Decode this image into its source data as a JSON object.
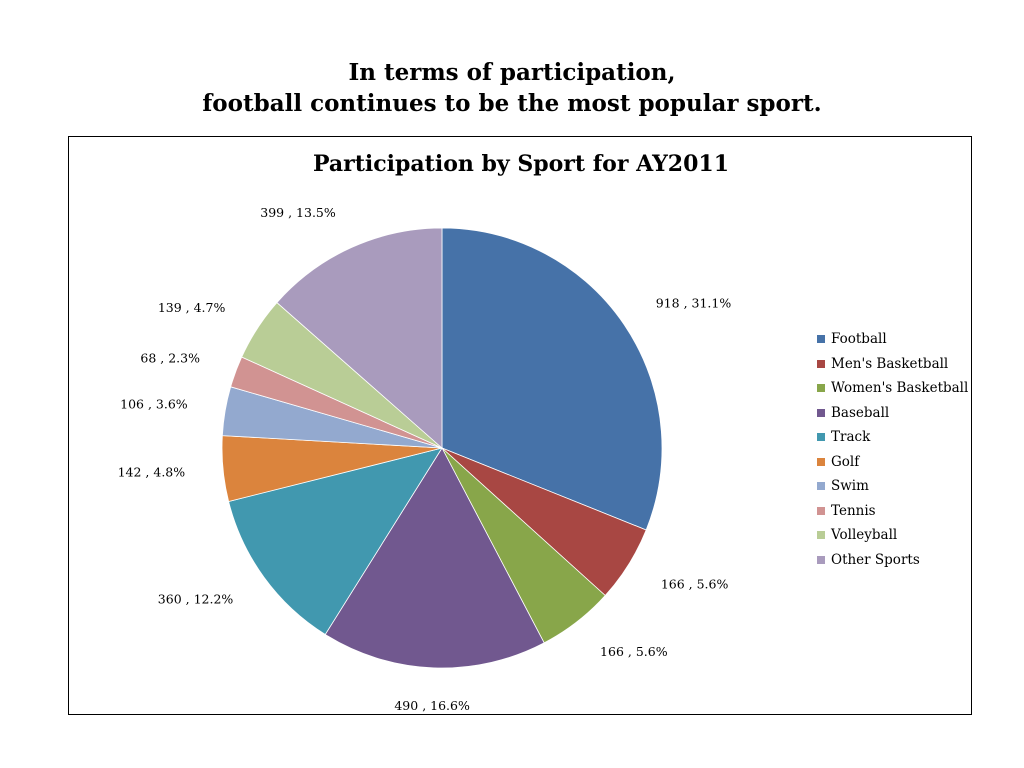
{
  "slide": {
    "title_line1": "In terms of participation,",
    "title_line2": "football continues to be the most popular sport."
  },
  "chart_data": {
    "type": "pie",
    "title": "Participation by Sport for AY2011",
    "legend_position": "right",
    "slices": [
      {
        "label": "Football",
        "value": 918,
        "percent": "31.1%",
        "data_label": "918 , 31.1%",
        "color": "#4672A8"
      },
      {
        "label": "Men's Basketball",
        "value": 166,
        "percent": "5.6%",
        "data_label": "166 , 5.6%",
        "color": "#A84743"
      },
      {
        "label": "Women's Basketball",
        "value": 166,
        "percent": "5.6%",
        "data_label": "166 , 5.6%",
        "color": "#88A64A"
      },
      {
        "label": "Baseball",
        "value": 490,
        "percent": "16.6%",
        "data_label": "490 , 16.6%",
        "color": "#71588F"
      },
      {
        "label": "Track",
        "value": 360,
        "percent": "12.2%",
        "data_label": "360 , 12.2%",
        "color": "#4198AF"
      },
      {
        "label": "Golf",
        "value": 142,
        "percent": "4.8%",
        "data_label": "142 , 4.8%",
        "color": "#DB843D"
      },
      {
        "label": "Swim",
        "value": 106,
        "percent": "3.6%",
        "data_label": "106 , 3.6%",
        "color": "#93A9CF"
      },
      {
        "label": "Tennis",
        "value": 68,
        "percent": "2.3%",
        "data_label": "68 , 2.3%",
        "color": "#D19392"
      },
      {
        "label": "Volleyball",
        "value": 139,
        "percent": "4.7%",
        "data_label": "139 , 4.7%",
        "color": "#B9CD96"
      },
      {
        "label": "Other Sports",
        "value": 399,
        "percent": "13.5%",
        "data_label": "399 , 13.5%",
        "color": "#A99BBD"
      }
    ]
  }
}
